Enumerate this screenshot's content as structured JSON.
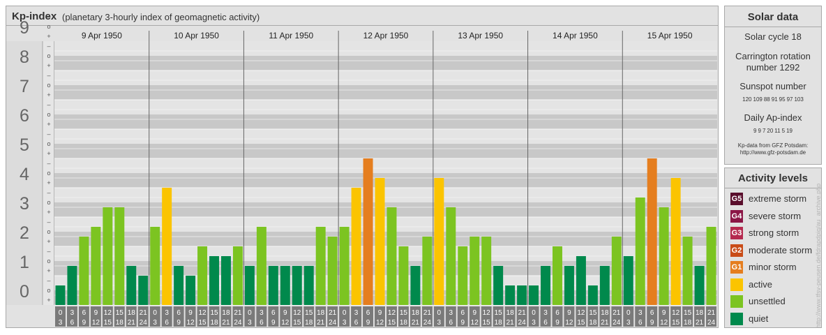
{
  "title": {
    "main": "Kp-index",
    "subtitle": "(planetary 3-hourly index of geomagnetic activity)"
  },
  "colors": {
    "quiet": "#00894c",
    "unsettled": "#7cc421",
    "active": "#fbc400",
    "G1": "#e57e1f",
    "G2": "#c94c17",
    "G3": "#b52a4f",
    "G4": "#8b1646",
    "G5": "#5a0e2c"
  },
  "solar": {
    "title": "Solar data",
    "cycle": "Solar cycle 18",
    "carrington": "Carrington rotation number 1292",
    "sunspot_label": "Sunspot number",
    "sunspot_values": [
      "120",
      "109",
      "88",
      "91",
      "95",
      "97",
      "103"
    ],
    "ap_label": "Daily Ap-index",
    "ap_values": [
      "9",
      "9",
      "7",
      "20",
      "11",
      "5",
      "19"
    ],
    "credit_line1": "Kp-data from GFZ Potsdam:",
    "credit_line2": "http://www.gfz-potsdam.de"
  },
  "activity": {
    "title": "Activity levels",
    "levels": [
      {
        "badge": "G5",
        "label": "extreme storm",
        "color": "#5a0e2c"
      },
      {
        "badge": "G4",
        "label": "severe storm",
        "color": "#8b1646"
      },
      {
        "badge": "G3",
        "label": "strong storm",
        "color": "#b52a4f"
      },
      {
        "badge": "G2",
        "label": "moderate storm",
        "color": "#c94c17"
      },
      {
        "badge": "G1",
        "label": "minor storm",
        "color": "#e57e1f"
      },
      {
        "badge": "",
        "label": "active",
        "color": "#fbc400"
      },
      {
        "badge": "",
        "label": "unsettled",
        "color": "#7cc421"
      },
      {
        "badge": "",
        "label": "quiet",
        "color": "#00894c"
      }
    ]
  },
  "watermark": "http://www.tfsv-peusen.de/fdrapdpig/au_archive.php",
  "chart_data": {
    "type": "bar",
    "title": "Kp-index",
    "ylim": [
      0,
      9
    ],
    "y_ticks": [
      "0",
      "1",
      "2",
      "3",
      "4",
      "5",
      "6",
      "7",
      "8",
      "9"
    ],
    "sub_ticks": [
      "+",
      "o",
      "–"
    ],
    "days": [
      "9 Apr 1950",
      "10 Apr 1950",
      "11 Apr 1950",
      "12 Apr 1950",
      "13 Apr 1950",
      "14 Apr 1950",
      "15 Apr 1950"
    ],
    "interval_labels": [
      [
        "0",
        "3"
      ],
      [
        "3",
        "6"
      ],
      [
        "6",
        "9"
      ],
      [
        "9",
        "12"
      ],
      [
        "12",
        "15"
      ],
      [
        "15",
        "18"
      ],
      [
        "18",
        "21"
      ],
      [
        "21",
        "24"
      ]
    ],
    "values": [
      [
        0.667,
        1.333,
        2.333,
        2.667,
        3.333,
        3.333,
        1.333,
        1.0
      ],
      [
        2.667,
        4.0,
        1.333,
        1.0,
        2.0,
        1.667,
        1.667,
        2.0
      ],
      [
        1.333,
        2.667,
        1.333,
        1.333,
        1.333,
        1.333,
        2.667,
        2.333
      ],
      [
        2.667,
        4.0,
        5.0,
        4.333,
        3.333,
        2.0,
        1.333,
        2.333
      ],
      [
        4.333,
        3.333,
        2.0,
        2.333,
        2.333,
        1.333,
        0.667,
        0.667
      ],
      [
        0.667,
        1.333,
        2.0,
        1.333,
        1.667,
        0.667,
        1.333,
        2.333
      ],
      [
        1.667,
        3.667,
        5.0,
        3.333,
        4.333,
        2.333,
        1.333,
        2.667
      ]
    ]
  }
}
